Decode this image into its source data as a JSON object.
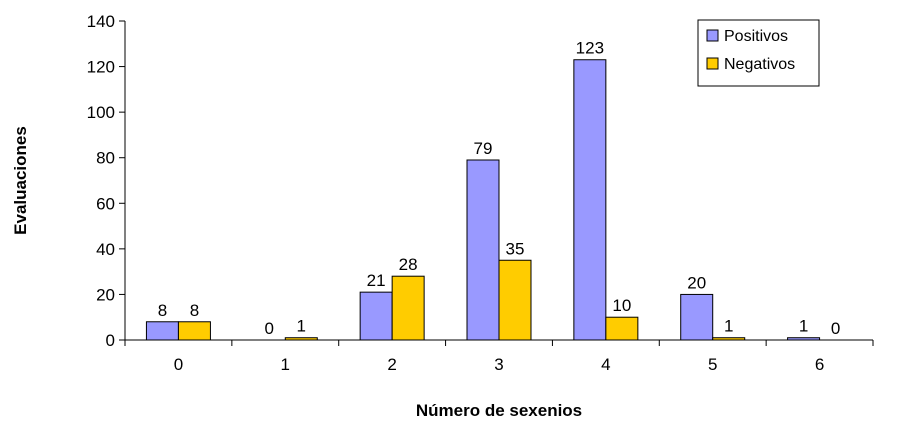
{
  "chart_data": {
    "type": "bar",
    "title": "",
    "xlabel": "Número de sexenios",
    "ylabel": "Evaluaciones",
    "categories": [
      "0",
      "1",
      "2",
      "3",
      "4",
      "5",
      "6"
    ],
    "series": [
      {
        "name": "Positivos",
        "values": [
          8,
          0,
          21,
          79,
          123,
          20,
          1
        ],
        "color": "#9999ff"
      },
      {
        "name": "Negativos",
        "values": [
          8,
          1,
          28,
          35,
          10,
          1,
          0
        ],
        "color": "#ffcc00"
      }
    ],
    "ylim": [
      0,
      140
    ],
    "yticks": [
      0,
      20,
      40,
      60,
      80,
      100,
      120,
      140
    ],
    "grid": false,
    "legend": "top-right"
  }
}
